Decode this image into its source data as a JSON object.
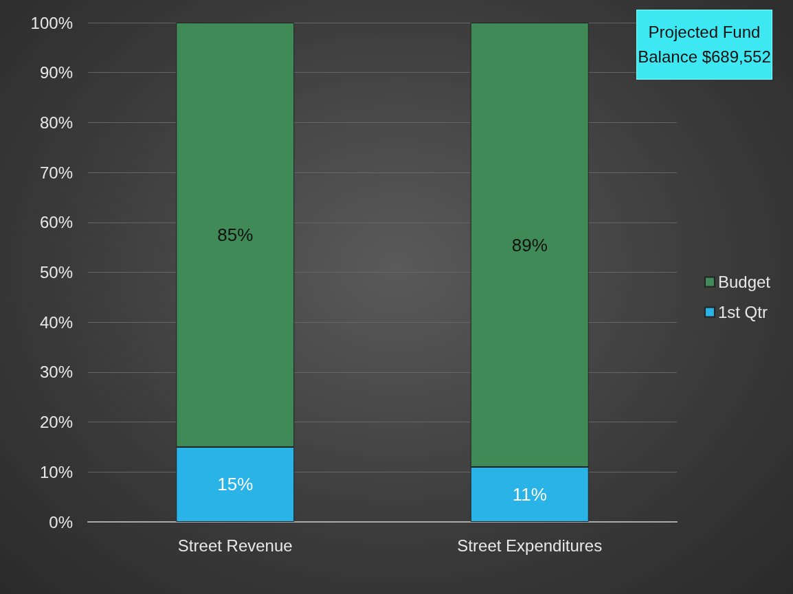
{
  "chart_data": {
    "type": "bar",
    "stacked": true,
    "categories": [
      "Street Revenue",
      "Street Expenditures"
    ],
    "series": [
      {
        "name": "1st Qtr",
        "color": "#29b3e6",
        "values": [
          15,
          11
        ],
        "value_labels": [
          "15%",
          "11%"
        ]
      },
      {
        "name": "Budget",
        "color": "#3f8a56",
        "values": [
          85,
          89
        ],
        "value_labels": [
          "85%",
          "89%"
        ]
      }
    ],
    "ylim": [
      0,
      100
    ],
    "yticks": [
      {
        "value": 0,
        "label": "0%"
      },
      {
        "value": 10,
        "label": "10%"
      },
      {
        "value": 20,
        "label": "20%"
      },
      {
        "value": 30,
        "label": "30%"
      },
      {
        "value": 40,
        "label": "40%"
      },
      {
        "value": 50,
        "label": "50%"
      },
      {
        "value": 60,
        "label": "60%"
      },
      {
        "value": 70,
        "label": "70%"
      },
      {
        "value": 80,
        "label": "80%"
      },
      {
        "value": 90,
        "label": "90%"
      },
      {
        "value": 100,
        "label": "100%"
      }
    ],
    "grid": "y",
    "legend": "right",
    "annotations": [
      "Projected Fund Balance $689,552"
    ]
  }
}
